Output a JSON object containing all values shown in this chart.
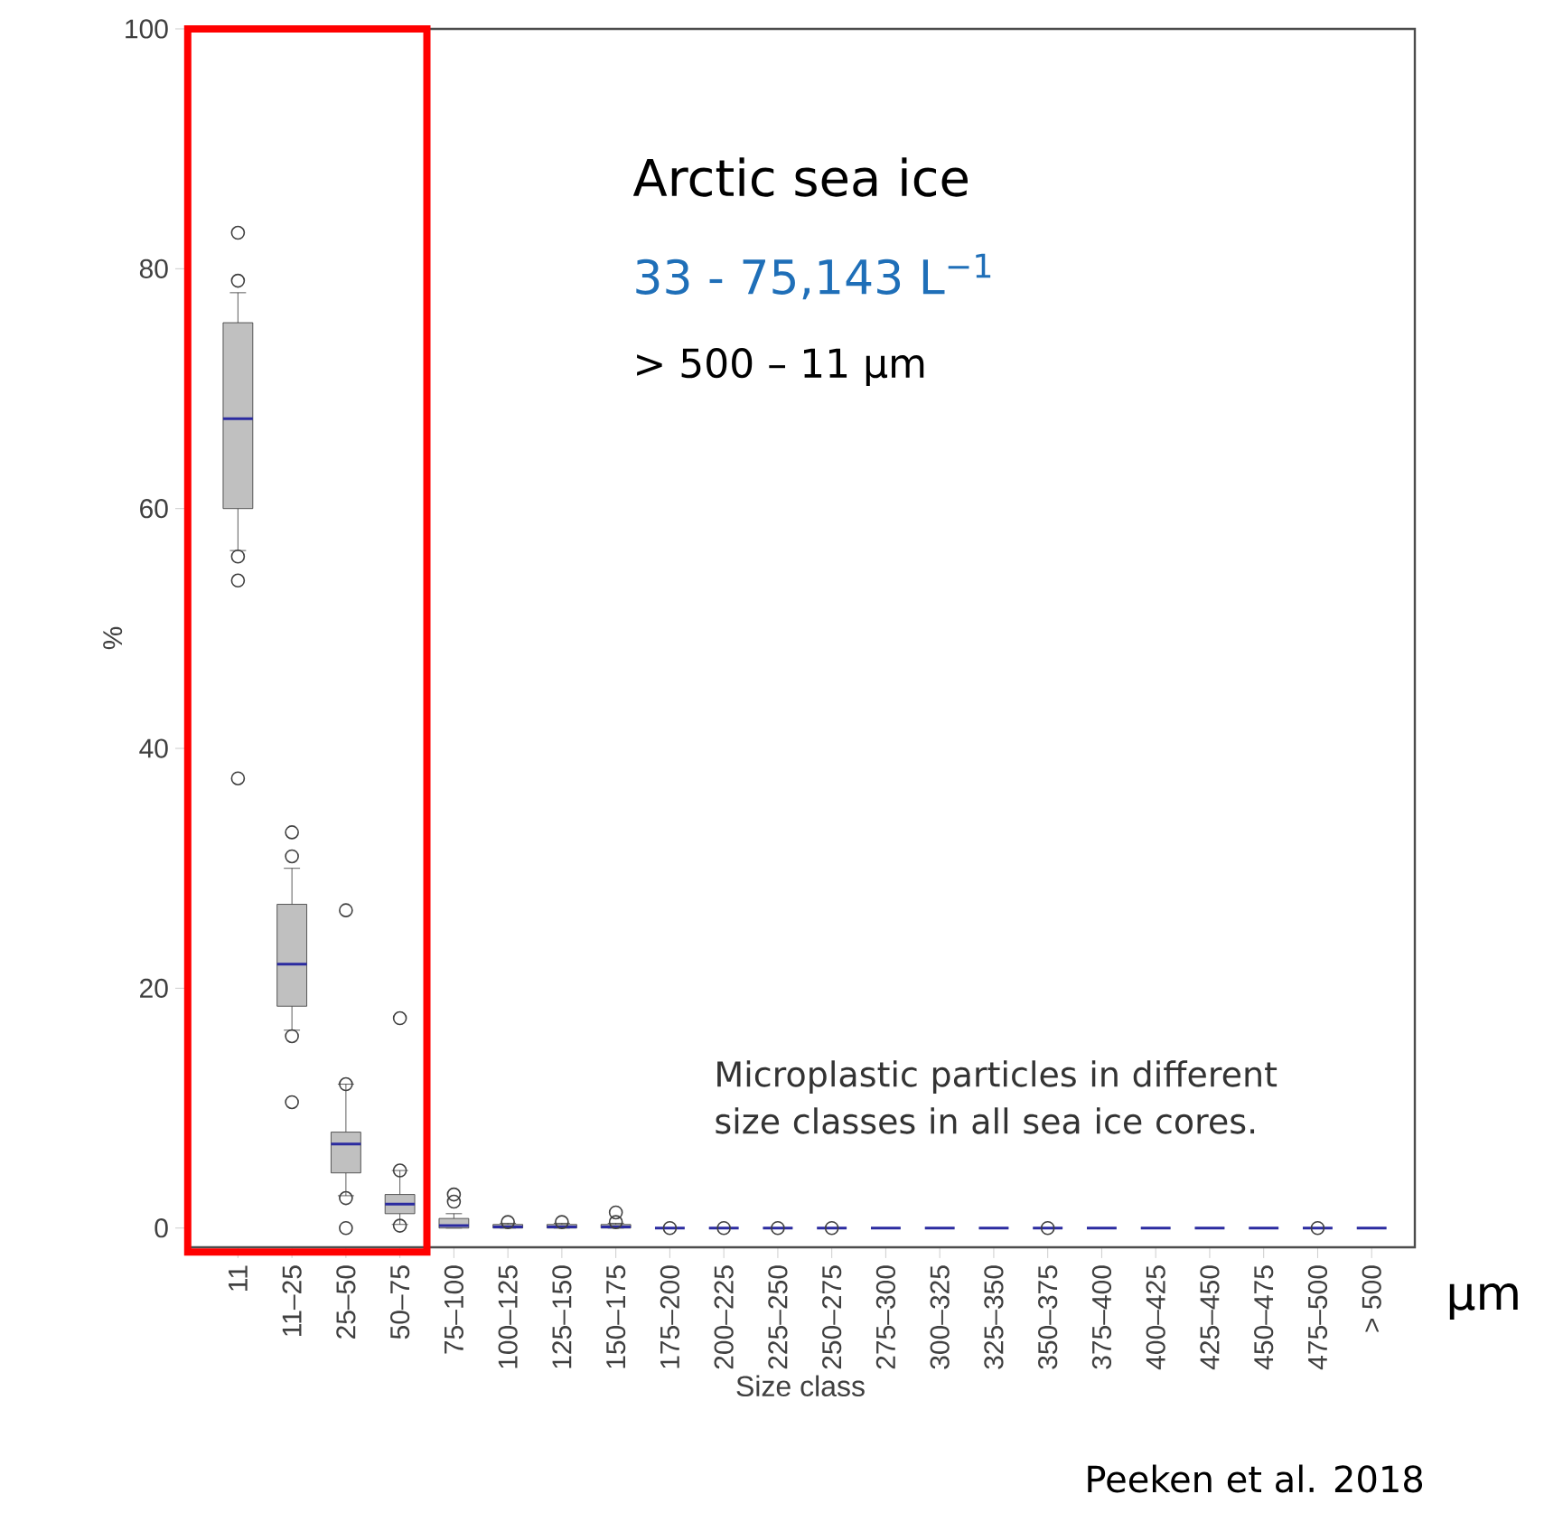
{
  "chart_data": {
    "type": "box",
    "xlabel": "Size class",
    "ylabel": "%",
    "categories": [
      "11",
      "11–25",
      "25–50",
      "50–75",
      "75–100",
      "100–125",
      "125–150",
      "150–175",
      "175–200",
      "200–225",
      "225–250",
      "250–275",
      "275–300",
      "300–325",
      "325–350",
      "350–375",
      "375–400",
      "400–425",
      "425–450",
      "450–475",
      "475–500",
      "> 500"
    ],
    "boxes": [
      {
        "low": 56.5,
        "q1": 60,
        "median": 67.5,
        "q3": 75.5,
        "high": 78,
        "outliers": [
          83,
          79,
          56,
          54,
          37.5
        ]
      },
      {
        "low": 16.5,
        "q1": 18.5,
        "median": 22,
        "q3": 27,
        "high": 30,
        "outliers": [
          33,
          31,
          16,
          10.5
        ]
      },
      {
        "low": 2.7,
        "q1": 4.6,
        "median": 7,
        "q3": 8,
        "high": 12,
        "outliers": [
          26.5,
          12,
          2.5,
          0
        ]
      },
      {
        "low": 0.3,
        "q1": 1.2,
        "median": 2,
        "q3": 2.8,
        "high": 4.8,
        "outliers": [
          17.5,
          4.8,
          0.2
        ]
      },
      {
        "low": 0,
        "q1": 0,
        "median": 0.2,
        "q3": 0.8,
        "high": 1.2,
        "outliers": [
          2.8,
          2.2
        ]
      },
      {
        "low": 0,
        "q1": 0,
        "median": 0.1,
        "q3": 0.3,
        "high": 0.4,
        "outliers": [
          0.5
        ]
      },
      {
        "low": 0,
        "q1": 0,
        "median": 0.1,
        "q3": 0.3,
        "high": 0.4,
        "outliers": [
          0.5
        ]
      },
      {
        "low": 0,
        "q1": 0,
        "median": 0.1,
        "q3": 0.3,
        "high": 0.4,
        "outliers": [
          0.5,
          1.3
        ]
      },
      {
        "low": 0,
        "q1": 0,
        "median": 0,
        "q3": 0,
        "high": 0,
        "outliers": [
          0
        ]
      },
      {
        "low": 0,
        "q1": 0,
        "median": 0,
        "q3": 0,
        "high": 0,
        "outliers": [
          0
        ]
      },
      {
        "low": 0,
        "q1": 0,
        "median": 0,
        "q3": 0,
        "high": 0,
        "outliers": [
          0
        ]
      },
      {
        "low": 0,
        "q1": 0,
        "median": 0,
        "q3": 0,
        "high": 0,
        "outliers": [
          0
        ]
      },
      {
        "low": 0,
        "q1": 0,
        "median": 0,
        "q3": 0,
        "high": 0
      },
      {
        "low": 0,
        "q1": 0,
        "median": 0,
        "q3": 0,
        "high": 0
      },
      {
        "low": 0,
        "q1": 0,
        "median": 0,
        "q3": 0,
        "high": 0
      },
      {
        "low": 0,
        "q1": 0,
        "median": 0,
        "q3": 0,
        "high": 0,
        "outliers": [
          0
        ]
      },
      {
        "low": 0,
        "q1": 0,
        "median": 0,
        "q3": 0,
        "high": 0
      },
      {
        "low": 0,
        "q1": 0,
        "median": 0,
        "q3": 0,
        "high": 0
      },
      {
        "low": 0,
        "q1": 0,
        "median": 0,
        "q3": 0,
        "high": 0
      },
      {
        "low": 0,
        "q1": 0,
        "median": 0,
        "q3": 0,
        "high": 0
      },
      {
        "low": 0,
        "q1": 0,
        "median": 0,
        "q3": 0,
        "high": 0,
        "outliers": [
          0
        ]
      },
      {
        "low": 0,
        "q1": 0,
        "median": 0,
        "q3": 0,
        "high": 0
      }
    ],
    "color": "#c0c0c0",
    "ylim": [
      -1.6,
      100
    ],
    "yticks": [
      0,
      20,
      40,
      60,
      80,
      100
    ],
    "grid": false,
    "annotations": [
      "Arctic sea ice",
      "33 - 75,143 L$^{−1}$",
      "> 500 – 11 µm",
      "Microplastic particles in different size classes in all sea ice cores.",
      "µm",
      "Peeken et al. 2018"
    ]
  }
}
